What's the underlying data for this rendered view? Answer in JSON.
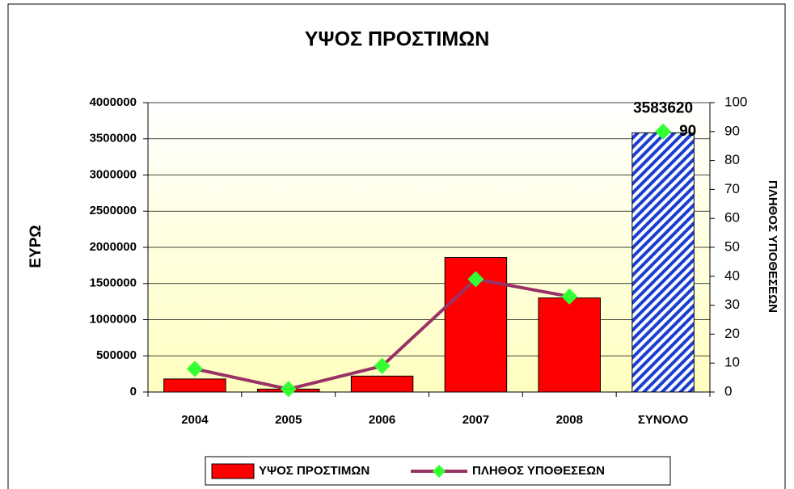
{
  "chart_data": {
    "type": "bar_line",
    "title": "ΥΨΟΣ ΠΡΟΣΤΙΜΩΝ",
    "y_label": "ΕΥΡΩ",
    "y2_label": "ΠΛΗΘΟΣ ΥΠΟΘΕΣΕΩΝ",
    "categories": [
      "2004",
      "2005",
      "2006",
      "2007",
      "2008",
      "ΣΥΝΟΛΟ"
    ],
    "series": [
      {
        "name": "ΥΨΟΣ ΠΡΟΣΤΙΜΩΝ",
        "type": "bar",
        "color": "#ff0000",
        "total_color": "#1a3fd0",
        "values": [
          180000,
          40000,
          220000,
          1860000,
          1300000,
          3583620
        ]
      },
      {
        "name": "ΠΛΗΘΟΣ ΥΠΟΘΕΣΕΩΝ",
        "type": "line",
        "axis": "y2",
        "color": "#993366",
        "marker_color": "#33ff33",
        "values": [
          8,
          1,
          9,
          39,
          33,
          90
        ]
      }
    ],
    "total_category": "ΣΥΝΟΛΟ",
    "ylim": [
      0,
      4000000
    ],
    "yticks": [
      0,
      500000,
      1000000,
      1500000,
      2000000,
      2500000,
      3000000,
      3500000,
      4000000
    ],
    "y2lim": [
      0,
      100
    ],
    "y2ticks": [
      0,
      10,
      20,
      30,
      40,
      50,
      60,
      70,
      80,
      90,
      100
    ],
    "grid": true,
    "legend": "bottom"
  }
}
